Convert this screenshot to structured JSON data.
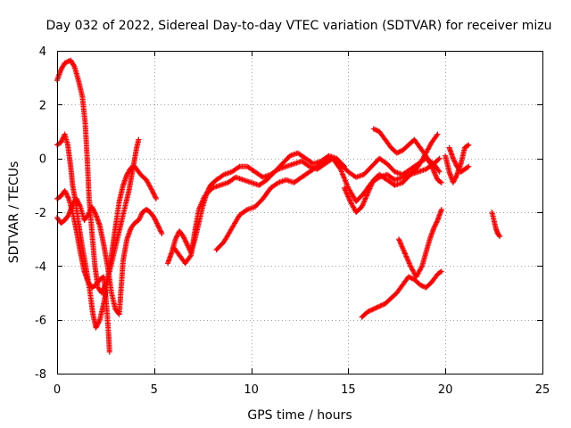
{
  "chart_data": {
    "type": "scatter",
    "title": "Day 032 of 2022, Sidereal Day-to-day VTEC variation (SDTVAR) for receiver mizu",
    "xlabel": "GPS time / hours",
    "ylabel": "SDTVAR / TECUs",
    "xlim": [
      0,
      25
    ],
    "ylim": [
      -8,
      4
    ],
    "xticks": [
      0,
      5,
      10,
      15,
      20,
      25
    ],
    "xtick_labels": [
      "0",
      "5",
      "10",
      "15",
      "20",
      "25"
    ],
    "yticks": [
      -8,
      -6,
      -4,
      -2,
      0,
      2,
      4
    ],
    "ytick_labels": [
      "-8",
      "-6",
      "-4",
      "-2",
      "0",
      "2",
      "4"
    ],
    "grid": true,
    "marker": "+",
    "color": "#ff0000",
    "series": [
      {
        "name": "track-1",
        "points": [
          [
            0.0,
            2.9
          ],
          [
            0.2,
            3.3
          ],
          [
            0.4,
            3.55
          ],
          [
            0.7,
            3.65
          ],
          [
            0.9,
            3.4
          ],
          [
            1.1,
            2.9
          ],
          [
            1.3,
            2.3
          ],
          [
            1.45,
            1.3
          ],
          [
            1.55,
            0.0
          ],
          [
            1.65,
            -1.5
          ],
          [
            1.8,
            -2.8
          ],
          [
            1.95,
            -4.0
          ],
          [
            2.1,
            -4.8
          ],
          [
            2.3,
            -5.0
          ],
          [
            2.5,
            -4.7
          ],
          [
            2.7,
            -4.2
          ],
          [
            2.9,
            -3.6
          ],
          [
            3.1,
            -3.0
          ],
          [
            3.3,
            -2.4
          ],
          [
            3.5,
            -1.8
          ],
          [
            3.7,
            -1.2
          ],
          [
            3.9,
            -0.4
          ],
          [
            4.1,
            0.4
          ],
          [
            4.2,
            0.7
          ]
        ]
      },
      {
        "name": "track-2",
        "points": [
          [
            0.0,
            0.5
          ],
          [
            0.2,
            0.6
          ],
          [
            0.4,
            0.9
          ],
          [
            0.55,
            0.5
          ],
          [
            0.7,
            -0.3
          ],
          [
            0.8,
            -1.0
          ],
          [
            0.95,
            -1.6
          ],
          [
            1.1,
            -2.4
          ],
          [
            1.3,
            -3.3
          ],
          [
            1.5,
            -4.1
          ],
          [
            1.7,
            -5.0
          ],
          [
            1.85,
            -5.8
          ],
          [
            2.0,
            -6.3
          ],
          [
            2.2,
            -6.0
          ],
          [
            2.4,
            -5.4
          ],
          [
            2.6,
            -4.6
          ],
          [
            2.8,
            -3.6
          ],
          [
            3.0,
            -2.6
          ],
          [
            3.2,
            -1.6
          ],
          [
            3.4,
            -1.0
          ],
          [
            3.6,
            -0.6
          ],
          [
            3.8,
            -0.35
          ],
          [
            4.0,
            -0.3
          ],
          [
            4.3,
            -0.6
          ],
          [
            4.6,
            -0.8
          ],
          [
            4.9,
            -1.2
          ],
          [
            5.1,
            -1.5
          ]
        ]
      },
      {
        "name": "track-3",
        "points": [
          [
            0.0,
            -1.5
          ],
          [
            0.2,
            -1.4
          ],
          [
            0.4,
            -1.2
          ],
          [
            0.6,
            -1.5
          ],
          [
            0.8,
            -2.0
          ],
          [
            1.0,
            -2.7
          ],
          [
            1.2,
            -3.5
          ],
          [
            1.4,
            -4.2
          ],
          [
            1.6,
            -4.6
          ],
          [
            1.8,
            -4.8
          ],
          [
            2.0,
            -4.7
          ],
          [
            2.2,
            -4.5
          ],
          [
            2.4,
            -4.4
          ],
          [
            2.55,
            -5.5
          ],
          [
            2.65,
            -6.5
          ],
          [
            2.7,
            -7.2
          ]
        ]
      },
      {
        "name": "track-4",
        "points": [
          [
            0.0,
            -2.2
          ],
          [
            0.2,
            -2.4
          ],
          [
            0.4,
            -2.3
          ],
          [
            0.6,
            -2.1
          ],
          [
            0.8,
            -1.7
          ],
          [
            1.0,
            -1.5
          ],
          [
            1.2,
            -1.8
          ],
          [
            1.4,
            -2.3
          ],
          [
            1.6,
            -2.1
          ],
          [
            1.8,
            -1.8
          ],
          [
            2.0,
            -2.1
          ],
          [
            2.2,
            -2.5
          ],
          [
            2.4,
            -3.2
          ],
          [
            2.6,
            -4.0
          ],
          [
            2.8,
            -5.0
          ],
          [
            3.0,
            -5.6
          ],
          [
            3.2,
            -5.8
          ],
          [
            3.3,
            -4.8
          ],
          [
            3.4,
            -3.8
          ],
          [
            3.6,
            -3.0
          ],
          [
            3.8,
            -2.6
          ],
          [
            4.0,
            -2.4
          ],
          [
            4.2,
            -2.3
          ],
          [
            4.4,
            -2.0
          ],
          [
            4.6,
            -1.9
          ],
          [
            4.8,
            -2.0
          ],
          [
            5.0,
            -2.2
          ],
          [
            5.2,
            -2.5
          ],
          [
            5.4,
            -2.8
          ]
        ]
      },
      {
        "name": "track-5",
        "points": [
          [
            5.7,
            -3.9
          ],
          [
            5.9,
            -3.5
          ],
          [
            6.1,
            -3.0
          ],
          [
            6.3,
            -2.7
          ],
          [
            6.5,
            -2.9
          ],
          [
            6.7,
            -3.2
          ],
          [
            6.9,
            -3.5
          ],
          [
            7.1,
            -3.0
          ],
          [
            7.3,
            -2.4
          ],
          [
            7.5,
            -1.8
          ],
          [
            7.7,
            -1.3
          ],
          [
            7.9,
            -1.0
          ],
          [
            8.2,
            -0.8
          ],
          [
            8.6,
            -0.6
          ],
          [
            9.0,
            -0.5
          ],
          [
            9.4,
            -0.3
          ],
          [
            9.8,
            -0.3
          ],
          [
            10.2,
            -0.5
          ],
          [
            10.6,
            -0.7
          ],
          [
            11.0,
            -0.6
          ],
          [
            11.4,
            -0.4
          ],
          [
            11.8,
            -0.3
          ],
          [
            12.2,
            -0.2
          ],
          [
            12.6,
            -0.1
          ],
          [
            13.0,
            -0.3
          ],
          [
            13.4,
            -0.4
          ],
          [
            13.8,
            -0.2
          ],
          [
            14.2,
            0.0
          ],
          [
            14.6,
            -0.2
          ],
          [
            15.0,
            -0.5
          ],
          [
            15.4,
            -0.7
          ],
          [
            15.8,
            -0.6
          ],
          [
            16.2,
            -0.3
          ],
          [
            16.6,
            0.0
          ],
          [
            17.0,
            -0.2
          ],
          [
            17.4,
            -0.5
          ],
          [
            17.8,
            -0.6
          ],
          [
            18.2,
            -0.4
          ],
          [
            18.6,
            -0.2
          ],
          [
            19.0,
            0.0
          ],
          [
            19.4,
            -0.2
          ],
          [
            19.7,
            -0.5
          ]
        ]
      },
      {
        "name": "track-6",
        "points": [
          [
            6.0,
            -3.3
          ],
          [
            6.3,
            -3.6
          ],
          [
            6.6,
            -3.9
          ],
          [
            6.9,
            -3.6
          ],
          [
            7.1,
            -2.7
          ],
          [
            7.3,
            -1.9
          ],
          [
            7.6,
            -1.4
          ],
          [
            8.0,
            -1.1
          ],
          [
            8.4,
            -1.0
          ],
          [
            8.8,
            -0.9
          ],
          [
            9.2,
            -0.7
          ],
          [
            9.6,
            -0.8
          ],
          [
            10.0,
            -0.9
          ],
          [
            10.4,
            -1.0
          ],
          [
            10.8,
            -0.8
          ],
          [
            11.2,
            -0.5
          ],
          [
            11.6,
            -0.2
          ],
          [
            12.0,
            0.1
          ],
          [
            12.4,
            0.2
          ],
          [
            12.8,
            0.0
          ],
          [
            13.2,
            -0.2
          ],
          [
            13.6,
            -0.1
          ],
          [
            14.0,
            0.1
          ],
          [
            14.4,
            0.0
          ],
          [
            14.8,
            -0.3
          ]
        ]
      },
      {
        "name": "track-7",
        "points": [
          [
            8.2,
            -3.4
          ],
          [
            8.6,
            -3.1
          ],
          [
            9.0,
            -2.6
          ],
          [
            9.4,
            -2.1
          ],
          [
            9.8,
            -1.9
          ],
          [
            10.2,
            -1.8
          ],
          [
            10.6,
            -1.5
          ],
          [
            11.0,
            -1.1
          ],
          [
            11.4,
            -0.9
          ],
          [
            11.8,
            -0.8
          ],
          [
            12.2,
            -0.9
          ],
          [
            12.6,
            -0.7
          ],
          [
            13.0,
            -0.5
          ],
          [
            13.4,
            -0.3
          ],
          [
            13.8,
            -0.1
          ],
          [
            14.2,
            0.0
          ],
          [
            14.6,
            -0.4
          ],
          [
            15.0,
            -1.1
          ],
          [
            15.4,
            -1.6
          ],
          [
            15.8,
            -1.3
          ],
          [
            16.2,
            -0.9
          ],
          [
            16.6,
            -0.7
          ],
          [
            17.0,
            -0.6
          ],
          [
            17.4,
            -0.8
          ],
          [
            17.8,
            -0.7
          ],
          [
            18.2,
            -0.6
          ],
          [
            18.6,
            -0.5
          ],
          [
            19.0,
            -0.4
          ],
          [
            19.4,
            -0.2
          ],
          [
            19.7,
            0.0
          ]
        ]
      },
      {
        "name": "track-8",
        "points": [
          [
            14.8,
            -1.1
          ],
          [
            15.1,
            -1.6
          ],
          [
            15.4,
            -2.0
          ],
          [
            15.7,
            -1.8
          ],
          [
            16.0,
            -1.3
          ],
          [
            16.3,
            -0.8
          ],
          [
            16.6,
            -0.6
          ],
          [
            17.0,
            -0.8
          ],
          [
            17.4,
            -1.0
          ],
          [
            17.8,
            -0.9
          ],
          [
            18.2,
            -0.6
          ],
          [
            18.6,
            -0.3
          ],
          [
            19.0,
            0.2
          ],
          [
            19.3,
            0.6
          ],
          [
            19.6,
            0.9
          ]
        ]
      },
      {
        "name": "track-9",
        "points": [
          [
            16.3,
            1.1
          ],
          [
            16.6,
            1.0
          ],
          [
            16.9,
            0.7
          ],
          [
            17.2,
            0.4
          ],
          [
            17.5,
            0.2
          ],
          [
            17.8,
            0.3
          ],
          [
            18.1,
            0.5
          ],
          [
            18.4,
            0.7
          ],
          [
            18.7,
            0.4
          ],
          [
            19.0,
            0.1
          ],
          [
            19.3,
            -0.3
          ],
          [
            19.6,
            -0.8
          ],
          [
            19.8,
            -0.9
          ]
        ]
      },
      {
        "name": "track-10",
        "points": [
          [
            15.7,
            -5.9
          ],
          [
            16.0,
            -5.7
          ],
          [
            16.3,
            -5.6
          ],
          [
            16.6,
            -5.5
          ],
          [
            16.9,
            -5.4
          ],
          [
            17.2,
            -5.2
          ],
          [
            17.5,
            -5.0
          ],
          [
            17.8,
            -4.7
          ],
          [
            18.1,
            -4.4
          ],
          [
            18.4,
            -4.5
          ],
          [
            18.7,
            -4.7
          ],
          [
            19.0,
            -4.8
          ],
          [
            19.3,
            -4.6
          ],
          [
            19.6,
            -4.3
          ],
          [
            19.8,
            -4.2
          ]
        ]
      },
      {
        "name": "track-11",
        "points": [
          [
            17.6,
            -3.0
          ],
          [
            17.9,
            -3.5
          ],
          [
            18.2,
            -4.0
          ],
          [
            18.5,
            -4.4
          ],
          [
            18.8,
            -4.0
          ],
          [
            19.0,
            -3.5
          ],
          [
            19.2,
            -3.0
          ],
          [
            19.4,
            -2.6
          ],
          [
            19.6,
            -2.3
          ],
          [
            19.8,
            -1.9
          ]
        ]
      },
      {
        "name": "track-12",
        "points": [
          [
            20.0,
            0.1
          ],
          [
            20.2,
            -0.5
          ],
          [
            20.4,
            -0.9
          ],
          [
            20.6,
            -0.6
          ],
          [
            20.8,
            -0.2
          ],
          [
            21.0,
            0.4
          ],
          [
            21.2,
            0.5
          ]
        ]
      },
      {
        "name": "track-13",
        "points": [
          [
            20.2,
            0.4
          ],
          [
            20.4,
            0.0
          ],
          [
            20.6,
            -0.3
          ],
          [
            20.8,
            -0.5
          ],
          [
            21.0,
            -0.4
          ],
          [
            21.2,
            -0.3
          ]
        ]
      },
      {
        "name": "track-14",
        "points": [
          [
            22.4,
            -2.0
          ],
          [
            22.5,
            -2.3
          ],
          [
            22.6,
            -2.6
          ],
          [
            22.7,
            -2.8
          ],
          [
            22.8,
            -2.9
          ]
        ]
      }
    ]
  }
}
